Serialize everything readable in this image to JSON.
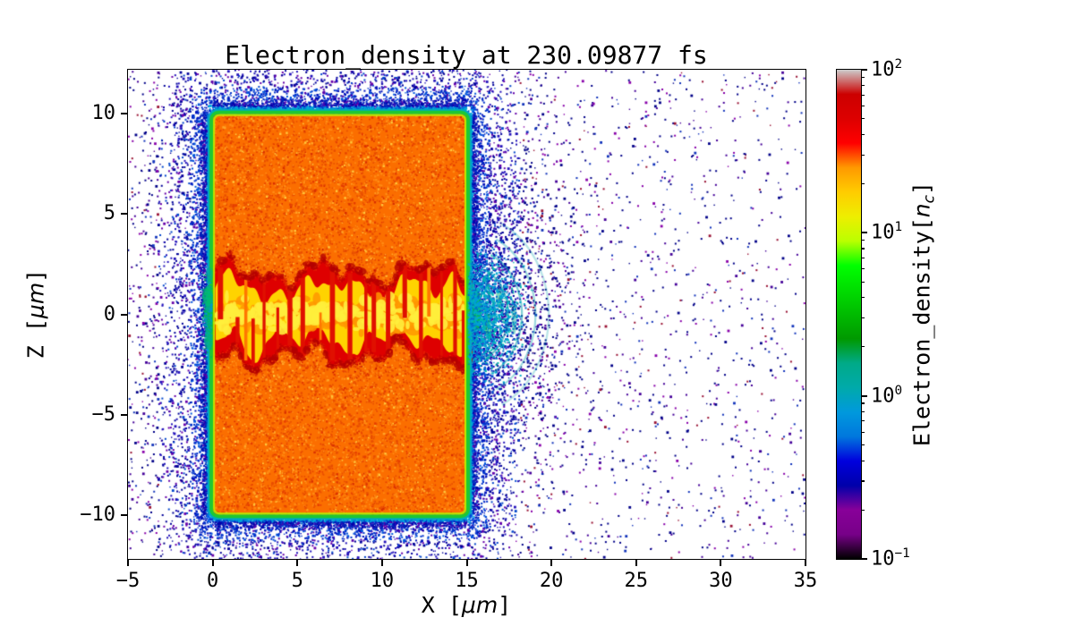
{
  "chart_data": {
    "type": "heatmap",
    "title": "Electron_density at 230.09877 fs",
    "xlabel": "X [μm]",
    "xlabel_parts": {
      "prefix": "X [",
      "math": "μm",
      "suffix": "]"
    },
    "ylabel": "Z [μm]",
    "ylabel_parts": {
      "prefix": "Z [",
      "math": "μm",
      "suffix": "]"
    },
    "xlim": [
      -5,
      35
    ],
    "ylim": [
      -12.2,
      12.2
    ],
    "xticks": {
      "values": [
        -5,
        0,
        5,
        10,
        15,
        20,
        25,
        30,
        35
      ],
      "labels": [
        "−5",
        "0",
        "5",
        "10",
        "15",
        "20",
        "25",
        "30",
        "35"
      ]
    },
    "yticks": {
      "values": [
        -10,
        -5,
        0,
        5,
        10
      ],
      "labels": [
        "−10",
        "−5",
        "0",
        "5",
        "10"
      ]
    },
    "grid": false,
    "legend": "none",
    "colorbar": {
      "label": "Electron_density[nc]",
      "label_parts": {
        "prefix": "Electron_density[",
        "symbol": "n",
        "subscript": "c",
        "suffix": "]"
      },
      "scale": "log",
      "vmin": 0.1,
      "vmax": 100,
      "ticks": [
        {
          "value": 100,
          "base": "10",
          "exp": "2"
        },
        {
          "value": 10,
          "base": "10",
          "exp": "1"
        },
        {
          "value": 1,
          "base": "10",
          "exp": "0"
        },
        {
          "value": 0.1,
          "base": "10",
          "exp": "−1"
        }
      ],
      "colormap": "nipy_spectral",
      "stops": [
        [
          0,
          "#000000"
        ],
        [
          0.05,
          "#770088"
        ],
        [
          0.1,
          "#880099"
        ],
        [
          0.15,
          "#0000AA"
        ],
        [
          0.2,
          "#0000DD"
        ],
        [
          0.25,
          "#0077DD"
        ],
        [
          0.3,
          "#0099DD"
        ],
        [
          0.35,
          "#00AAAA"
        ],
        [
          0.4,
          "#00AA88"
        ],
        [
          0.45,
          "#009900"
        ],
        [
          0.5,
          "#00BB00"
        ],
        [
          0.55,
          "#00DD00"
        ],
        [
          0.6,
          "#00FF00"
        ],
        [
          0.65,
          "#BBFF00"
        ],
        [
          0.7,
          "#EEEE00"
        ],
        [
          0.75,
          "#FFCC00"
        ],
        [
          0.8,
          "#FF9900"
        ],
        [
          0.85,
          "#FF0000"
        ],
        [
          0.9,
          "#DD0000"
        ],
        [
          0.95,
          "#CC0000"
        ],
        [
          1,
          "#CCCCCC"
        ]
      ]
    },
    "features": {
      "target_block": {
        "x_range": [
          0,
          15
        ],
        "z_range": [
          -10,
          10
        ],
        "base_color": "#FB6E00",
        "approx_density_nc": 25
      },
      "block_edge": {
        "colors": [
          "#BFE600",
          "#1EC832",
          "#00AABE"
        ],
        "description": "thin yellow-green/green/teal plasma sheath around target edges"
      },
      "laser_channel": {
        "x_range": [
          0,
          15.3
        ],
        "z_half_width": 2.1,
        "rim_color": "#DE0000",
        "core_color": "#FFD300",
        "approx_density_nc": [
          10,
          60
        ],
        "description": "turbulent red-rimmed yellow channel along z=0"
      },
      "exit_plume": {
        "x_range": [
          15,
          23
        ],
        "z_half_width": 5,
        "colors": [
          "#00BB55",
          "#00AAAA",
          "#0099DD"
        ],
        "description": "green/teal arcs and cyan-blue electron cloud exiting right face"
      },
      "halo": {
        "colors": [
          "#0033CC",
          "#000099",
          "#6600AA",
          "#991133"
        ],
        "description": "scattered low-density electron speckle surrounding target"
      }
    }
  }
}
